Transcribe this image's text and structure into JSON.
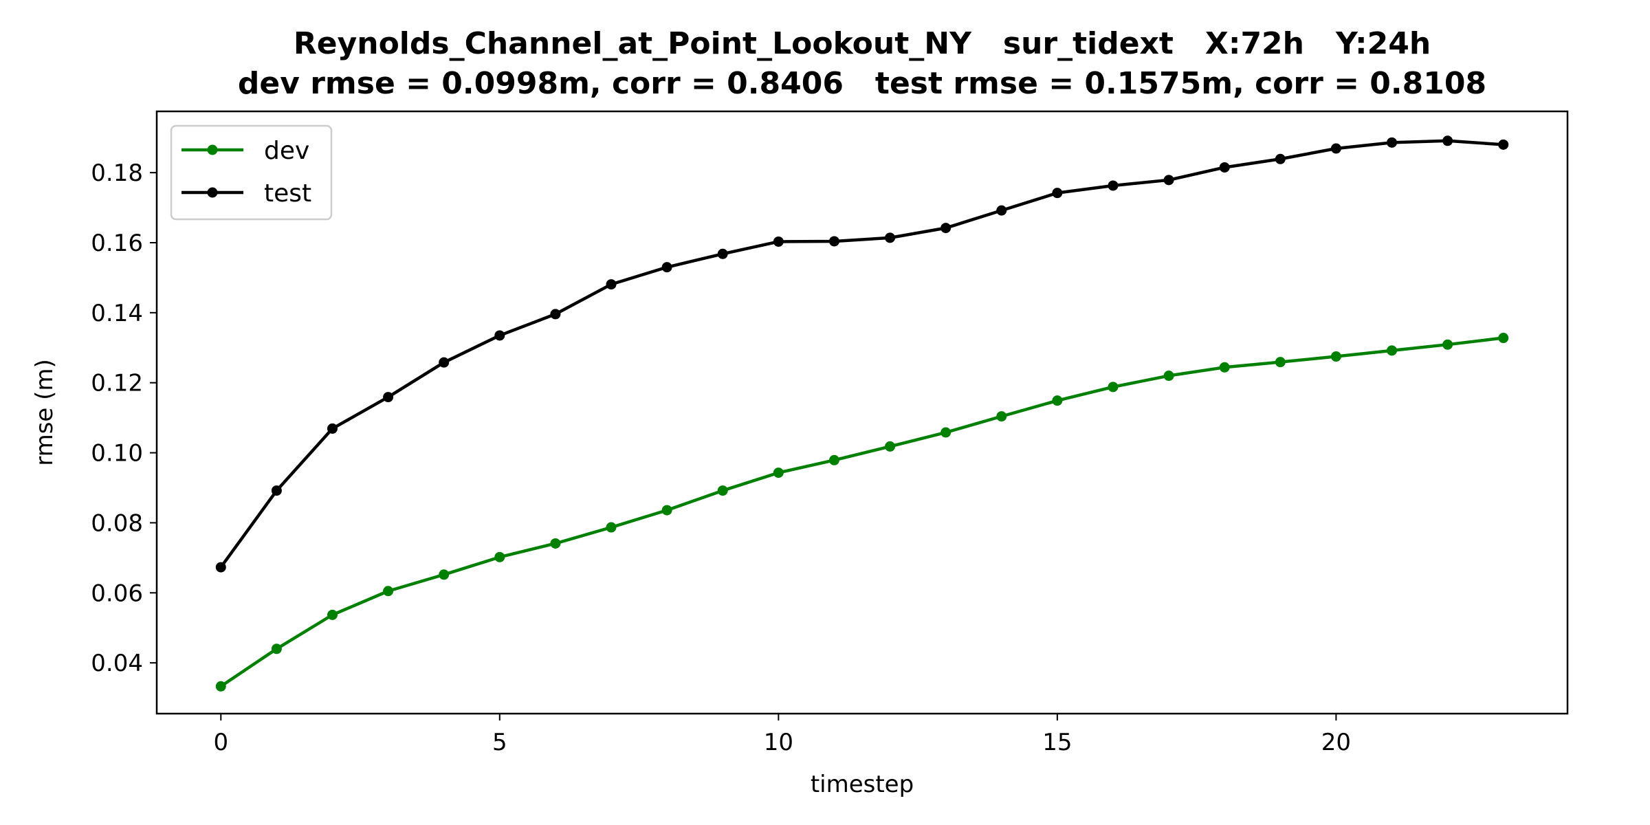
{
  "chart_data": {
    "type": "line",
    "title": "Reynolds_Channel_at_Point_Lookout_NY   sur_tidext   X:72h   Y:24h",
    "subtitle": "dev rmse = 0.0998m, corr = 0.8406   test rmse = 0.1575m, corr = 0.8108",
    "xlabel": "timestep",
    "ylabel": "rmse (m)",
    "xlim": [
      -1.15,
      24.15
    ],
    "ylim": [
      0.0255,
      0.1975
    ],
    "xticks": [
      0,
      5,
      10,
      15,
      20
    ],
    "xtick_labels": [
      "0",
      "5",
      "10",
      "15",
      "20"
    ],
    "yticks": [
      0.04,
      0.06,
      0.08,
      0.1,
      0.12,
      0.14,
      0.16,
      0.18
    ],
    "ytick_labels": [
      "0.04",
      "0.06",
      "0.08",
      "0.10",
      "0.12",
      "0.14",
      "0.16",
      "0.18"
    ],
    "grid": false,
    "legend_position": "top-left",
    "x": [
      0,
      1,
      2,
      3,
      4,
      5,
      6,
      7,
      8,
      9,
      10,
      11,
      12,
      13,
      14,
      15,
      16,
      17,
      18,
      19,
      20,
      21,
      22,
      23
    ],
    "series": [
      {
        "name": "dev",
        "color": "#008000",
        "values": [
          0.0333,
          0.044,
          0.0537,
          0.0605,
          0.0652,
          0.0702,
          0.0741,
          0.0787,
          0.0836,
          0.0892,
          0.0943,
          0.0979,
          0.1018,
          0.1058,
          0.1104,
          0.1149,
          0.1188,
          0.122,
          0.1244,
          0.1259,
          0.1275,
          0.1292,
          0.1309,
          0.1328
        ]
      },
      {
        "name": "test",
        "color": "#000000",
        "values": [
          0.0673,
          0.0892,
          0.1069,
          0.1159,
          0.1258,
          0.1335,
          0.1396,
          0.1481,
          0.153,
          0.1568,
          0.1603,
          0.1604,
          0.1614,
          0.1642,
          0.1692,
          0.1742,
          0.1763,
          0.1779,
          0.1815,
          0.1839,
          0.1869,
          0.1886,
          0.1891,
          0.188
        ]
      }
    ]
  }
}
